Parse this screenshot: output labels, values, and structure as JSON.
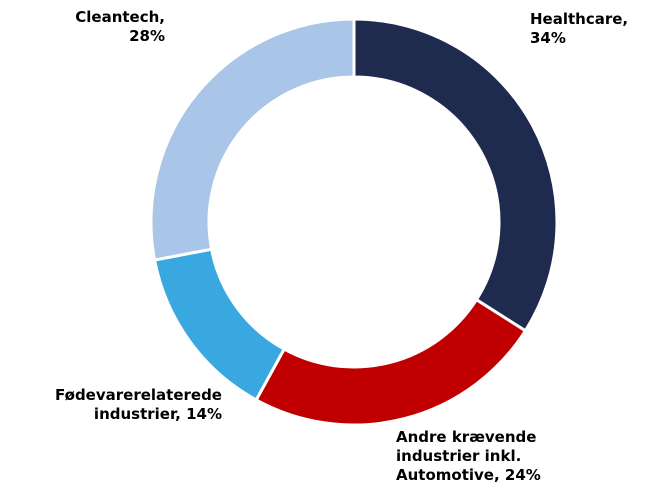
{
  "chart_data": {
    "type": "donut",
    "values": [
      34,
      24,
      14,
      28
    ],
    "value_labels": [
      "Healthcare, 34%",
      "Andre krævende industrier inkl. Automotive, 24%",
      "Fødevarerelaterede industrier, 14%",
      "Cleantech, 28%"
    ],
    "colors": [
      "#1f2a4f",
      "#c00000",
      "#3aa8e0",
      "#a9c6e8"
    ]
  }
}
